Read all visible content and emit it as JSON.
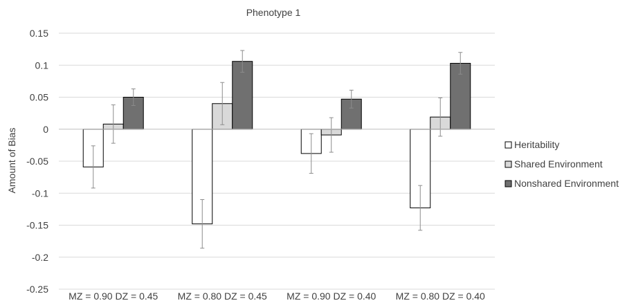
{
  "chart_data": {
    "type": "bar",
    "title": "Phenotype 1",
    "xlabel": "",
    "ylabel": "Amount of Bias",
    "ylim": [
      -0.25,
      0.15
    ],
    "yticks": [
      0.15,
      0.1,
      0.05,
      0,
      -0.05,
      -0.1,
      -0.15,
      -0.2,
      -0.25
    ],
    "ytick_labels": [
      "0.15",
      "0.1",
      "0.05",
      "0",
      "-0.05",
      "-0.1",
      "-0.15",
      "-0.2",
      "-0.25"
    ],
    "grid": true,
    "legend_position": "right",
    "categories": [
      "MZ = 0.90 DZ = 0.45",
      "MZ = 0.80 DZ = 0.45",
      "MZ = 0.90 DZ = 0.40",
      "MZ = 0.80 DZ = 0.40"
    ],
    "series": [
      {
        "name": "Heritability",
        "color": "#ffffff",
        "values": [
          -0.059,
          -0.148,
          -0.038,
          -0.123
        ],
        "error": [
          0.033,
          0.038,
          0.031,
          0.035
        ]
      },
      {
        "name": "Shared Environment",
        "color": "#d9d9d9",
        "values": [
          0.008,
          0.04,
          -0.009,
          0.019
        ],
        "error": [
          0.03,
          0.033,
          0.027,
          0.03
        ]
      },
      {
        "name": "Nonshared Environment",
        "color": "#707070",
        "values": [
          0.05,
          0.106,
          0.047,
          0.103
        ],
        "error": [
          0.013,
          0.017,
          0.014,
          0.017
        ]
      }
    ]
  }
}
